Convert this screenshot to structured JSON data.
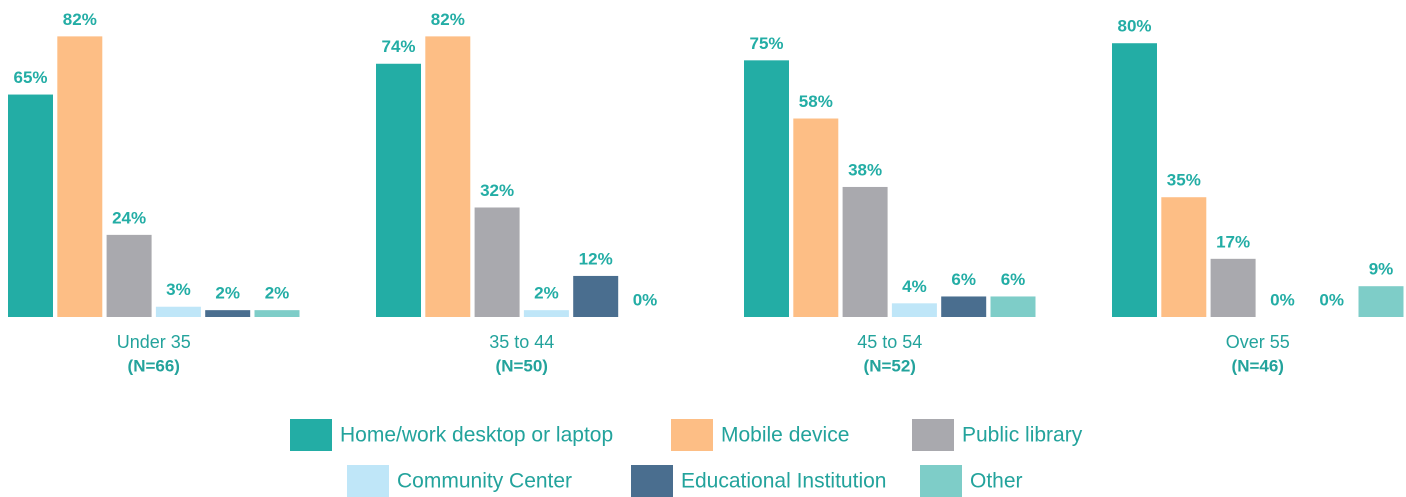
{
  "chart_data": {
    "type": "bar",
    "categories": [
      "Under 35",
      "35 to 44",
      "45 to 54",
      "Over 55"
    ],
    "sample_sizes": [
      "(N=66)",
      "(N=50)",
      "(N=52)",
      "(N=46)"
    ],
    "ylim": [
      0,
      90
    ],
    "series": [
      {
        "name": "Home/work desktop or laptop",
        "color": "#23ada5",
        "values": [
          65,
          74,
          75,
          80
        ],
        "value_labels": [
          "65%",
          "74%",
          "75%",
          "80%"
        ]
      },
      {
        "name": "Mobile device",
        "color": "#fdbe85",
        "values": [
          82,
          82,
          58,
          35
        ],
        "value_labels": [
          "82%",
          "82%",
          "58%",
          "35%"
        ]
      },
      {
        "name": "Public library",
        "color": "#a9a9ae",
        "values": [
          24,
          32,
          38,
          17
        ],
        "value_labels": [
          "24%",
          "32%",
          "38%",
          "17%"
        ]
      },
      {
        "name": "Community Center",
        "color": "#bfe6f8",
        "values": [
          3,
          2,
          4,
          0
        ],
        "value_labels": [
          "3%",
          "2%",
          "4%",
          "0%"
        ]
      },
      {
        "name": "Educational Institution",
        "color": "#4a6e8f",
        "values": [
          2,
          12,
          6,
          0
        ],
        "value_labels": [
          "2%",
          "12%",
          "6%",
          "0%"
        ]
      },
      {
        "name": "Other",
        "color": "#7ecdc8",
        "values": [
          2,
          0,
          6,
          9
        ],
        "value_labels": [
          "2%",
          "0%",
          "6%",
          "9%"
        ]
      }
    ]
  }
}
